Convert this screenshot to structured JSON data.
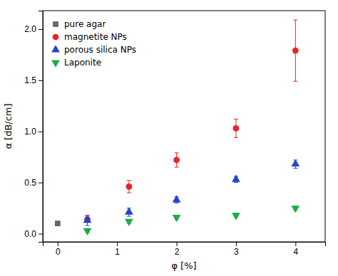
{
  "chart_data": {
    "type": "scatter",
    "xlabel": "φ [%]",
    "ylabel": "α [dB/cm]",
    "xlim": [
      -0.25,
      4.5
    ],
    "ylim": [
      -0.08,
      2.18
    ],
    "xticks": [
      0,
      1,
      2,
      3,
      4
    ],
    "yticks": [
      {
        "value": 0.0,
        "label": "0.0"
      },
      0.5,
      {
        "value": 1.0,
        "label": "1.0"
      },
      1.5,
      {
        "value": 2.0,
        "label": "2.0"
      }
    ],
    "series": [
      {
        "name": "pure agar",
        "color": "#666666",
        "marker": "square",
        "x": [
          0
        ],
        "values": [
          0.1
        ],
        "yerr": [
          0.02
        ]
      },
      {
        "name": "magnetite NPs",
        "color": "#ee2222",
        "marker": "circle",
        "x": [
          0.5,
          1.2,
          2.0,
          3.0,
          4.0
        ],
        "values": [
          0.14,
          0.46,
          0.72,
          1.03,
          1.79
        ],
        "yerr": [
          0.03,
          0.06,
          0.07,
          0.09,
          0.3
        ]
      },
      {
        "name": "porous silica NPs",
        "color": "#2244cc",
        "marker": "triangle-up",
        "x": [
          0.5,
          1.2,
          2.0,
          3.0,
          4.0
        ],
        "values": [
          0.13,
          0.21,
          0.33,
          0.53,
          0.68
        ],
        "yerr": [
          0.05,
          0.04,
          0.03,
          0.03,
          0.04
        ]
      },
      {
        "name": "Laponite",
        "color": "#22aa44",
        "marker": "triangle-down",
        "x": [
          0.5,
          1.2,
          2.0,
          3.0,
          4.0
        ],
        "values": [
          0.03,
          0.12,
          0.16,
          0.18,
          0.25
        ],
        "yerr": [
          0.02,
          0.02,
          0.02,
          0.02,
          0.02
        ]
      }
    ],
    "legend": "upper left",
    "grid": false
  }
}
